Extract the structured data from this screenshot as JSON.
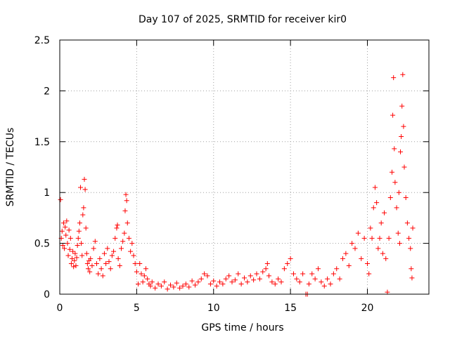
{
  "chart_data": {
    "type": "scatter",
    "title": "Day 107 of 2025, SRMTID for receiver kir0",
    "xlabel": "GPS time / hours",
    "ylabel": "SRMTID / TECUs",
    "xlim": [
      0,
      24
    ],
    "ylim": [
      0,
      2.5
    ],
    "xticks": [
      0,
      5,
      10,
      15,
      20
    ],
    "xtick_labels": [
      "0",
      "5",
      "10",
      "15",
      "20"
    ],
    "yticks": [
      0,
      0.5,
      1,
      1.5,
      2,
      2.5
    ],
    "ytick_labels": [
      "0",
      "0.5",
      "1",
      "1.5",
      "2",
      "2.5"
    ],
    "grid": true,
    "marker": "+",
    "marker_color": "#ff0000",
    "series": [
      {
        "name": "SRMTID",
        "points": [
          [
            0.05,
            0.93
          ],
          [
            0.1,
            0.55
          ],
          [
            0.15,
            0.62
          ],
          [
            0.2,
            0.48
          ],
          [
            0.25,
            0.7
          ],
          [
            0.3,
            0.45
          ],
          [
            0.35,
            0.66
          ],
          [
            0.4,
            0.58
          ],
          [
            0.45,
            0.72
          ],
          [
            0.5,
            0.5
          ],
          [
            0.55,
            0.38
          ],
          [
            0.6,
            0.63
          ],
          [
            0.65,
            0.44
          ],
          [
            0.7,
            0.55
          ],
          [
            0.75,
            0.3
          ],
          [
            0.8,
            0.35
          ],
          [
            0.85,
            0.42
          ],
          [
            0.9,
            0.27
          ],
          [
            0.95,
            0.33
          ],
          [
            1.0,
            0.4
          ],
          [
            1.05,
            0.28
          ],
          [
            1.1,
            0.36
          ],
          [
            1.15,
            0.48
          ],
          [
            1.2,
            0.55
          ],
          [
            1.25,
            0.62
          ],
          [
            1.3,
            0.7
          ],
          [
            1.35,
            1.05
          ],
          [
            1.4,
            0.5
          ],
          [
            1.45,
            0.38
          ],
          [
            1.5,
            0.78
          ],
          [
            1.55,
            0.85
          ],
          [
            1.6,
            1.13
          ],
          [
            1.65,
            1.03
          ],
          [
            1.7,
            0.65
          ],
          [
            1.75,
            0.4
          ],
          [
            1.8,
            0.3
          ],
          [
            1.85,
            0.25
          ],
          [
            1.9,
            0.33
          ],
          [
            1.95,
            0.22
          ],
          [
            2.0,
            0.35
          ],
          [
            2.1,
            0.28
          ],
          [
            2.2,
            0.45
          ],
          [
            2.3,
            0.52
          ],
          [
            2.4,
            0.3
          ],
          [
            2.5,
            0.2
          ],
          [
            2.6,
            0.35
          ],
          [
            2.7,
            0.25
          ],
          [
            2.8,
            0.18
          ],
          [
            2.9,
            0.4
          ],
          [
            3.0,
            0.3
          ],
          [
            3.1,
            0.45
          ],
          [
            3.2,
            0.32
          ],
          [
            3.3,
            0.25
          ],
          [
            3.4,
            0.38
          ],
          [
            3.5,
            0.42
          ],
          [
            3.6,
            0.55
          ],
          [
            3.7,
            0.65
          ],
          [
            3.75,
            0.68
          ],
          [
            3.8,
            0.35
          ],
          [
            3.9,
            0.28
          ],
          [
            4.0,
            0.45
          ],
          [
            4.1,
            0.52
          ],
          [
            4.2,
            0.6
          ],
          [
            4.25,
            0.82
          ],
          [
            4.3,
            0.98
          ],
          [
            4.35,
            0.92
          ],
          [
            4.4,
            0.7
          ],
          [
            4.5,
            0.55
          ],
          [
            4.6,
            0.42
          ],
          [
            4.7,
            0.5
          ],
          [
            4.8,
            0.38
          ],
          [
            4.9,
            0.3
          ],
          [
            5.0,
            0.22
          ],
          [
            5.1,
            0.1
          ],
          [
            5.2,
            0.3
          ],
          [
            5.3,
            0.2
          ],
          [
            5.4,
            0.12
          ],
          [
            5.5,
            0.18
          ],
          [
            5.6,
            0.25
          ],
          [
            5.7,
            0.15
          ],
          [
            5.8,
            0.1
          ],
          [
            5.9,
            0.08
          ],
          [
            6.0,
            0.12
          ],
          [
            6.2,
            0.06
          ],
          [
            6.4,
            0.1
          ],
          [
            6.6,
            0.08
          ],
          [
            6.8,
            0.12
          ],
          [
            7.0,
            0.05
          ],
          [
            7.2,
            0.09
          ],
          [
            7.4,
            0.07
          ],
          [
            7.6,
            0.11
          ],
          [
            7.8,
            0.06
          ],
          [
            8.0,
            0.08
          ],
          [
            8.2,
            0.1
          ],
          [
            8.4,
            0.07
          ],
          [
            8.6,
            0.13
          ],
          [
            8.8,
            0.09
          ],
          [
            9.0,
            0.12
          ],
          [
            9.2,
            0.15
          ],
          [
            9.4,
            0.2
          ],
          [
            9.6,
            0.18
          ],
          [
            9.8,
            0.1
          ],
          [
            10.0,
            0.13
          ],
          [
            10.2,
            0.08
          ],
          [
            10.4,
            0.12
          ],
          [
            10.6,
            0.1
          ],
          [
            10.8,
            0.15
          ],
          [
            11.0,
            0.18
          ],
          [
            11.2,
            0.12
          ],
          [
            11.4,
            0.14
          ],
          [
            11.6,
            0.2
          ],
          [
            11.8,
            0.1
          ],
          [
            12.0,
            0.16
          ],
          [
            12.2,
            0.12
          ],
          [
            12.4,
            0.18
          ],
          [
            12.6,
            0.14
          ],
          [
            12.8,
            0.2
          ],
          [
            13.0,
            0.15
          ],
          [
            13.2,
            0.22
          ],
          [
            13.4,
            0.25
          ],
          [
            13.5,
            0.3
          ],
          [
            13.6,
            0.18
          ],
          [
            13.8,
            0.12
          ],
          [
            14.0,
            0.1
          ],
          [
            14.2,
            0.15
          ],
          [
            14.4,
            0.12
          ],
          [
            14.6,
            0.25
          ],
          [
            14.8,
            0.3
          ],
          [
            15.0,
            0.35
          ],
          [
            15.2,
            0.2
          ],
          [
            15.4,
            0.15
          ],
          [
            15.6,
            0.12
          ],
          [
            15.8,
            0.2
          ],
          [
            16.0,
            0.0
          ],
          [
            16.1,
            0.0
          ],
          [
            16.2,
            0.1
          ],
          [
            16.4,
            0.2
          ],
          [
            16.6,
            0.15
          ],
          [
            16.8,
            0.25
          ],
          [
            17.0,
            0.12
          ],
          [
            17.2,
            0.08
          ],
          [
            17.4,
            0.15
          ],
          [
            17.6,
            0.1
          ],
          [
            17.8,
            0.2
          ],
          [
            18.0,
            0.25
          ],
          [
            18.2,
            0.15
          ],
          [
            18.4,
            0.35
          ],
          [
            18.6,
            0.4
          ],
          [
            18.8,
            0.28
          ],
          [
            19.0,
            0.5
          ],
          [
            19.2,
            0.45
          ],
          [
            19.4,
            0.6
          ],
          [
            19.6,
            0.35
          ],
          [
            19.8,
            0.55
          ],
          [
            20.0,
            0.3
          ],
          [
            20.1,
            0.2
          ],
          [
            20.2,
            0.65
          ],
          [
            20.3,
            0.55
          ],
          [
            20.4,
            0.85
          ],
          [
            20.5,
            1.05
          ],
          [
            20.6,
            0.9
          ],
          [
            20.7,
            0.45
          ],
          [
            20.8,
            0.55
          ],
          [
            20.9,
            0.7
          ],
          [
            21.0,
            0.4
          ],
          [
            21.1,
            0.8
          ],
          [
            21.2,
            0.35
          ],
          [
            21.3,
            0.02
          ],
          [
            21.4,
            0.55
          ],
          [
            21.5,
            0.95
          ],
          [
            21.6,
            1.2
          ],
          [
            21.65,
            1.76
          ],
          [
            21.7,
            2.13
          ],
          [
            21.75,
            1.43
          ],
          [
            21.8,
            1.1
          ],
          [
            21.9,
            0.85
          ],
          [
            22.0,
            0.6
          ],
          [
            22.05,
            1.0
          ],
          [
            22.1,
            0.5
          ],
          [
            22.15,
            1.4
          ],
          [
            22.2,
            1.55
          ],
          [
            22.25,
            1.85
          ],
          [
            22.3,
            2.16
          ],
          [
            22.35,
            1.65
          ],
          [
            22.4,
            1.25
          ],
          [
            22.5,
            0.95
          ],
          [
            22.6,
            0.7
          ],
          [
            22.7,
            0.55
          ],
          [
            22.8,
            0.45
          ],
          [
            22.85,
            0.25
          ],
          [
            22.9,
            0.16
          ],
          [
            22.95,
            0.65
          ]
        ]
      }
    ]
  }
}
